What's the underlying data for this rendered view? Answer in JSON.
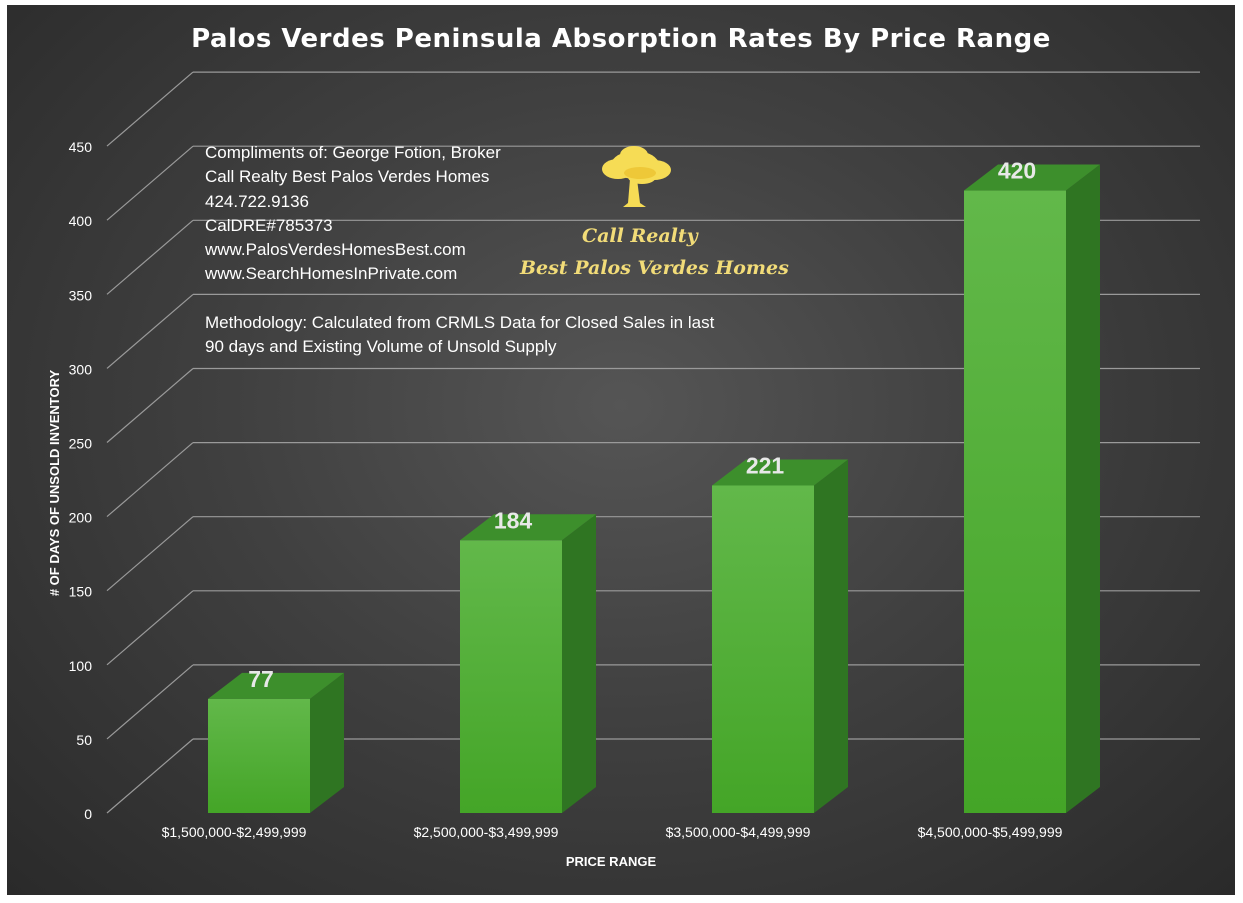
{
  "chart_data": {
    "type": "bar",
    "title": "Palos Verdes Peninsula Absorption Rates By Price Range",
    "xlabel": "PRICE RANGE",
    "ylabel": "# OF DAYS OF UNSOLD INVENTORY",
    "categories": [
      "$1,500,000-$2,499,999",
      "$2,500,000-$3,499,999",
      "$3,500,000-$4,499,999",
      "$4,500,000-$5,499,999"
    ],
    "values": [
      77,
      184,
      221,
      420
    ],
    "data_labels": [
      "77",
      "184",
      "221",
      "420"
    ],
    "yticks": [
      0,
      50,
      100,
      150,
      200,
      250,
      300,
      350,
      400,
      450
    ],
    "ylim": [
      0,
      450
    ],
    "grid": true,
    "style": "3d-column",
    "colors": {
      "bar_front": "#4fad33",
      "bar_side": "#2f7522",
      "bar_top": "#3d8f2c",
      "grid": "#9a9a9a",
      "text": "#ffffff"
    }
  },
  "annotations": {
    "credit_lines": [
      "Compliments of: George Fotion, Broker",
      "Call Realty Best Palos Verdes Homes",
      "424.722.9136",
      "CalDRE#785373",
      "www.PalosVerdesHomesBest.com",
      "www.SearchHomesInPrivate.com"
    ],
    "methodology": "Methodology: Calculated from CRMLS Data for Closed Sales in last 90 days and Existing Volume of Unsold Supply"
  },
  "logo": {
    "icon": "tree-icon",
    "line1": "Call Realty",
    "line2": "Best Palos Verdes Homes"
  }
}
